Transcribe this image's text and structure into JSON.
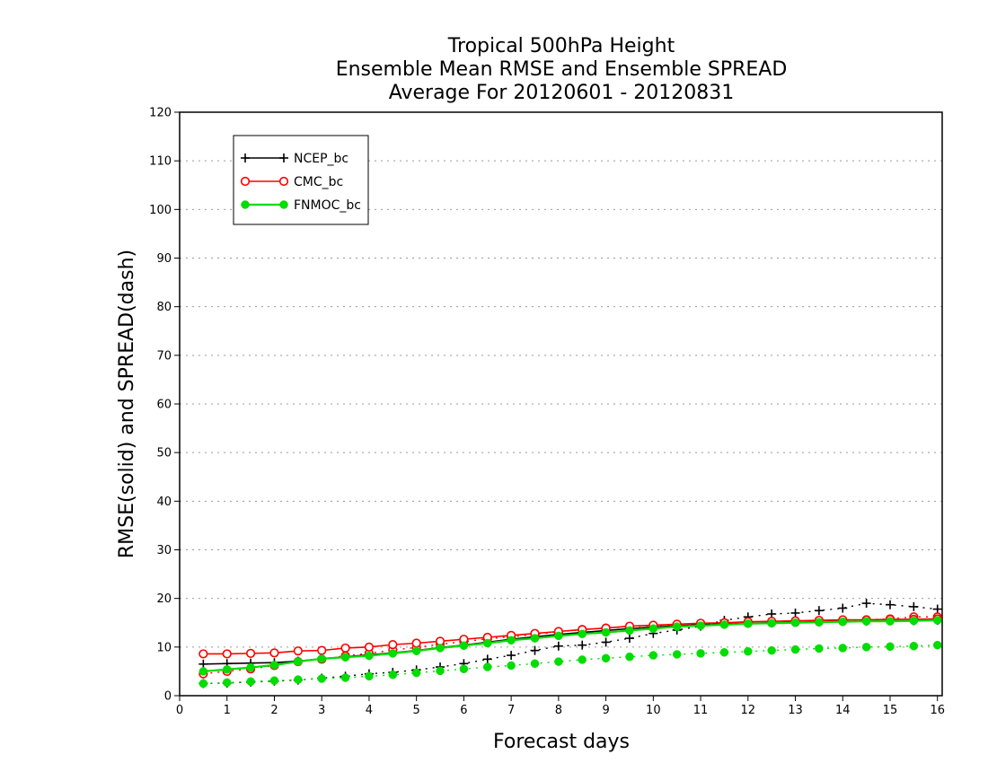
{
  "chart_data": {
    "type": "line",
    "title": [
      "Tropical 500hPa Height",
      "Ensemble Mean RMSE and Ensemble SPREAD",
      "Average For 20120601 - 20120831"
    ],
    "xlabel": "Forecast days",
    "ylabel": "RMSE(solid) and SPREAD(dash)",
    "xlim": [
      0,
      16.1
    ],
    "ylim": [
      0,
      120
    ],
    "xticks": [
      "0",
      "1",
      "2",
      "3",
      "4",
      "5",
      "6",
      "7",
      "8",
      "9",
      "10",
      "11",
      "12",
      "13",
      "14",
      "15",
      "16"
    ],
    "yticks": [
      "0",
      "10",
      "20",
      "30",
      "40",
      "50",
      "60",
      "70",
      "80",
      "90",
      "100",
      "110",
      "120"
    ],
    "grid": "horizontal-dotted",
    "legend_position": "top-left",
    "x": [
      0.5,
      1,
      1.5,
      2,
      2.5,
      3,
      3.5,
      4,
      4.5,
      5,
      5.5,
      6,
      6.5,
      7,
      7.5,
      8,
      8.5,
      9,
      9.5,
      10,
      10.5,
      11,
      11.5,
      12,
      12.5,
      13,
      13.5,
      14,
      14.5,
      15,
      15.5,
      16
    ],
    "series": [
      {
        "name": "NCEP_bc",
        "color": "#000000",
        "marker": "plus",
        "rmse": [
          6.5,
          6.6,
          6.7,
          6.8,
          7.1,
          7.6,
          8.0,
          8.4,
          8.8,
          9.3,
          9.9,
          10.4,
          11.0,
          11.6,
          12.1,
          12.6,
          13.0,
          13.4,
          13.8,
          14.1,
          14.4,
          14.6,
          14.8,
          14.9,
          15.0,
          15.1,
          15.2,
          15.3,
          15.3,
          15.4,
          15.4,
          15.5
        ],
        "spread": [
          2.5,
          2.6,
          2.8,
          3.0,
          3.2,
          3.6,
          4.0,
          4.5,
          4.8,
          5.3,
          5.9,
          6.6,
          7.5,
          8.3,
          9.3,
          10.2,
          10.4,
          11.0,
          11.8,
          12.8,
          13.5,
          14.3,
          15.5,
          16.2,
          16.8,
          17.0,
          17.5,
          18.0,
          19.0,
          18.7,
          18.3,
          17.8
        ]
      },
      {
        "name": "CMC_bc",
        "color": "#ff0000",
        "marker": "open-circle",
        "rmse": [
          8.6,
          8.6,
          8.7,
          8.8,
          9.2,
          9.3,
          9.8,
          10.0,
          10.5,
          10.8,
          11.2,
          11.6,
          12.0,
          12.4,
          12.8,
          13.2,
          13.6,
          13.9,
          14.3,
          14.5,
          14.7,
          14.9,
          15.0,
          15.2,
          15.3,
          15.4,
          15.5,
          15.6,
          15.6,
          15.7,
          15.7,
          15.8
        ],
        "spread": [
          4.5,
          5.0,
          5.5,
          6.2,
          7.0,
          7.5,
          8.2,
          8.7,
          9.4,
          9.9,
          10.6,
          11.1,
          11.7,
          12.1,
          12.6,
          13.1,
          13.6,
          13.9,
          14.2,
          14.4,
          14.6,
          14.7,
          14.8,
          14.9,
          15.0,
          15.1,
          15.2,
          15.3,
          15.6,
          15.8,
          16.2,
          16.2
        ]
      },
      {
        "name": "FNMOC_bc",
        "color": "#00dd00",
        "marker": "filled-circle",
        "rmse": [
          5.0,
          5.4,
          5.8,
          6.3,
          7.0,
          7.6,
          7.9,
          8.2,
          8.7,
          9.2,
          9.8,
          10.3,
          10.8,
          11.4,
          11.8,
          12.3,
          12.7,
          13.0,
          13.4,
          13.8,
          14.2,
          14.4,
          14.6,
          14.8,
          14.9,
          15.0,
          15.1,
          15.2,
          15.3,
          15.3,
          15.4,
          15.5
        ],
        "spread": [
          2.5,
          2.7,
          2.9,
          3.1,
          3.3,
          3.5,
          3.7,
          4.0,
          4.3,
          4.7,
          5.1,
          5.5,
          5.9,
          6.2,
          6.6,
          7.0,
          7.4,
          7.7,
          8.0,
          8.3,
          8.5,
          8.7,
          8.9,
          9.1,
          9.3,
          9.5,
          9.7,
          9.8,
          10.0,
          10.1,
          10.2,
          10.4
        ]
      }
    ]
  }
}
